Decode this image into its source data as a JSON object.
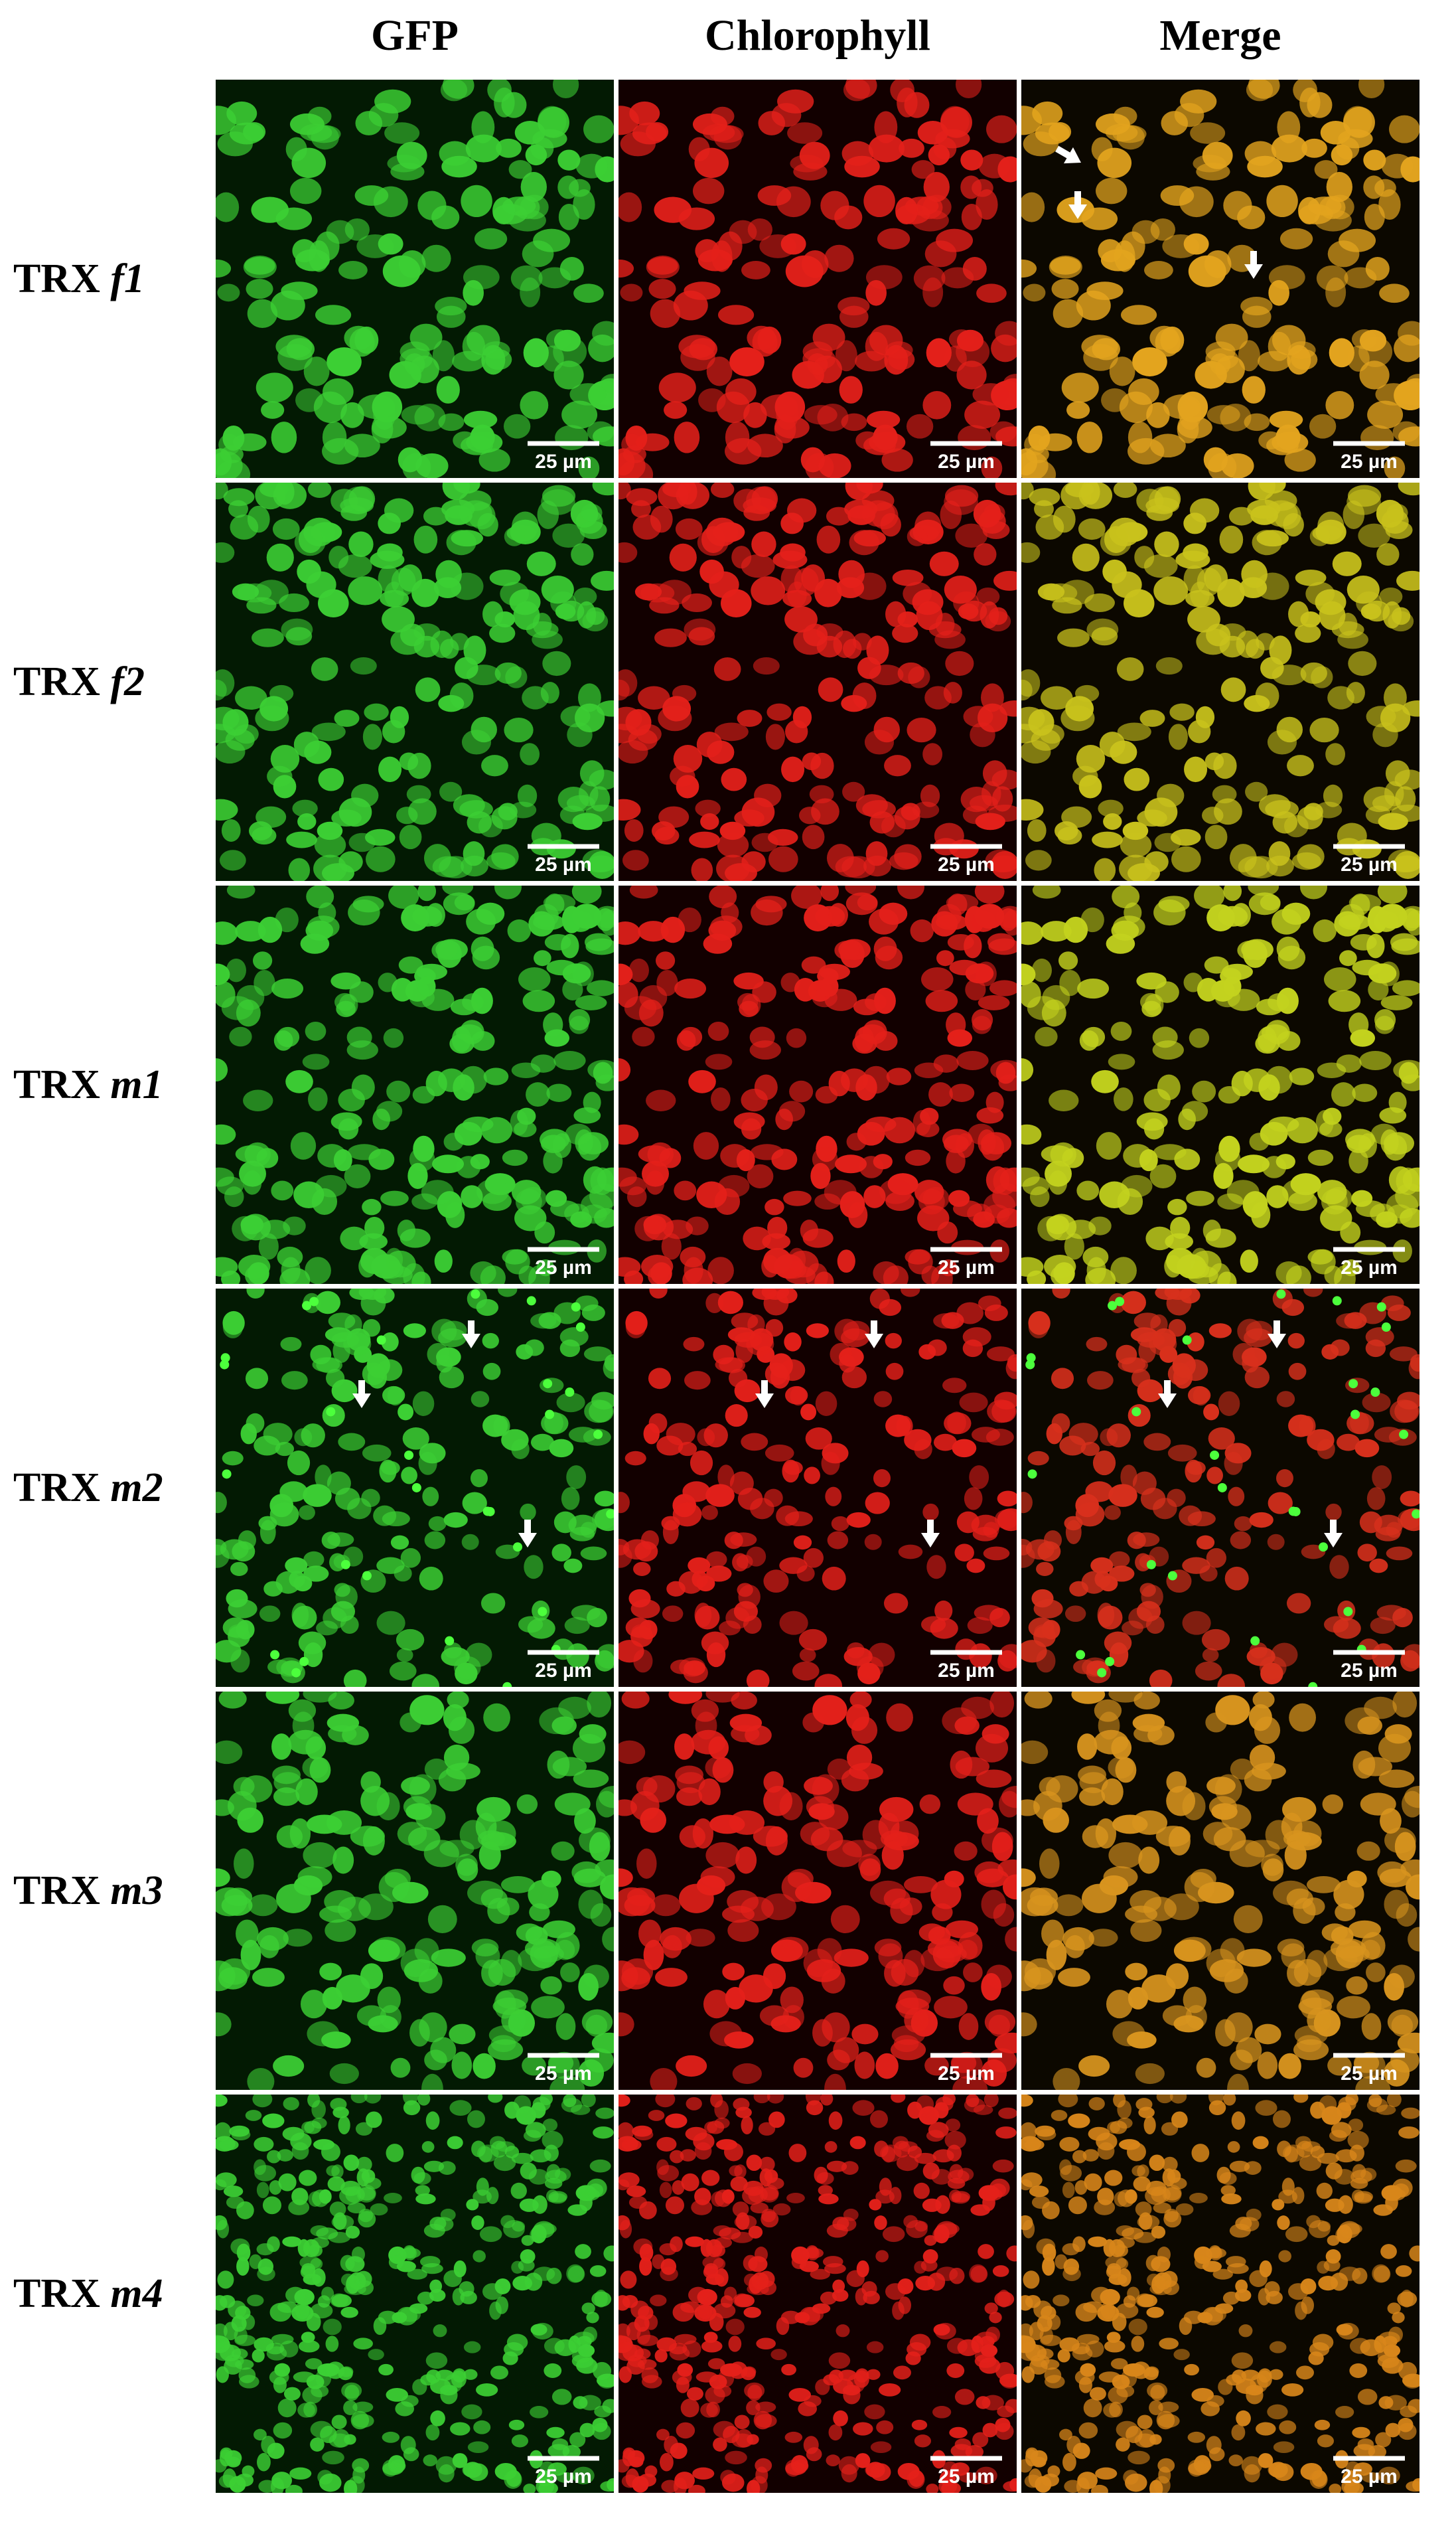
{
  "columns": [
    "GFP",
    "Chlorophyll",
    "Merge"
  ],
  "rows": [
    {
      "prefix": "TRX",
      "suffix": "f1"
    },
    {
      "prefix": "TRX",
      "suffix": "f2"
    },
    {
      "prefix": "TRX",
      "suffix": "m1"
    },
    {
      "prefix": "TRX",
      "suffix": "m2"
    },
    {
      "prefix": "TRX",
      "suffix": "m3"
    },
    {
      "prefix": "TRX",
      "suffix": "m4"
    }
  ],
  "scale_bar_label": "25 µm"
}
